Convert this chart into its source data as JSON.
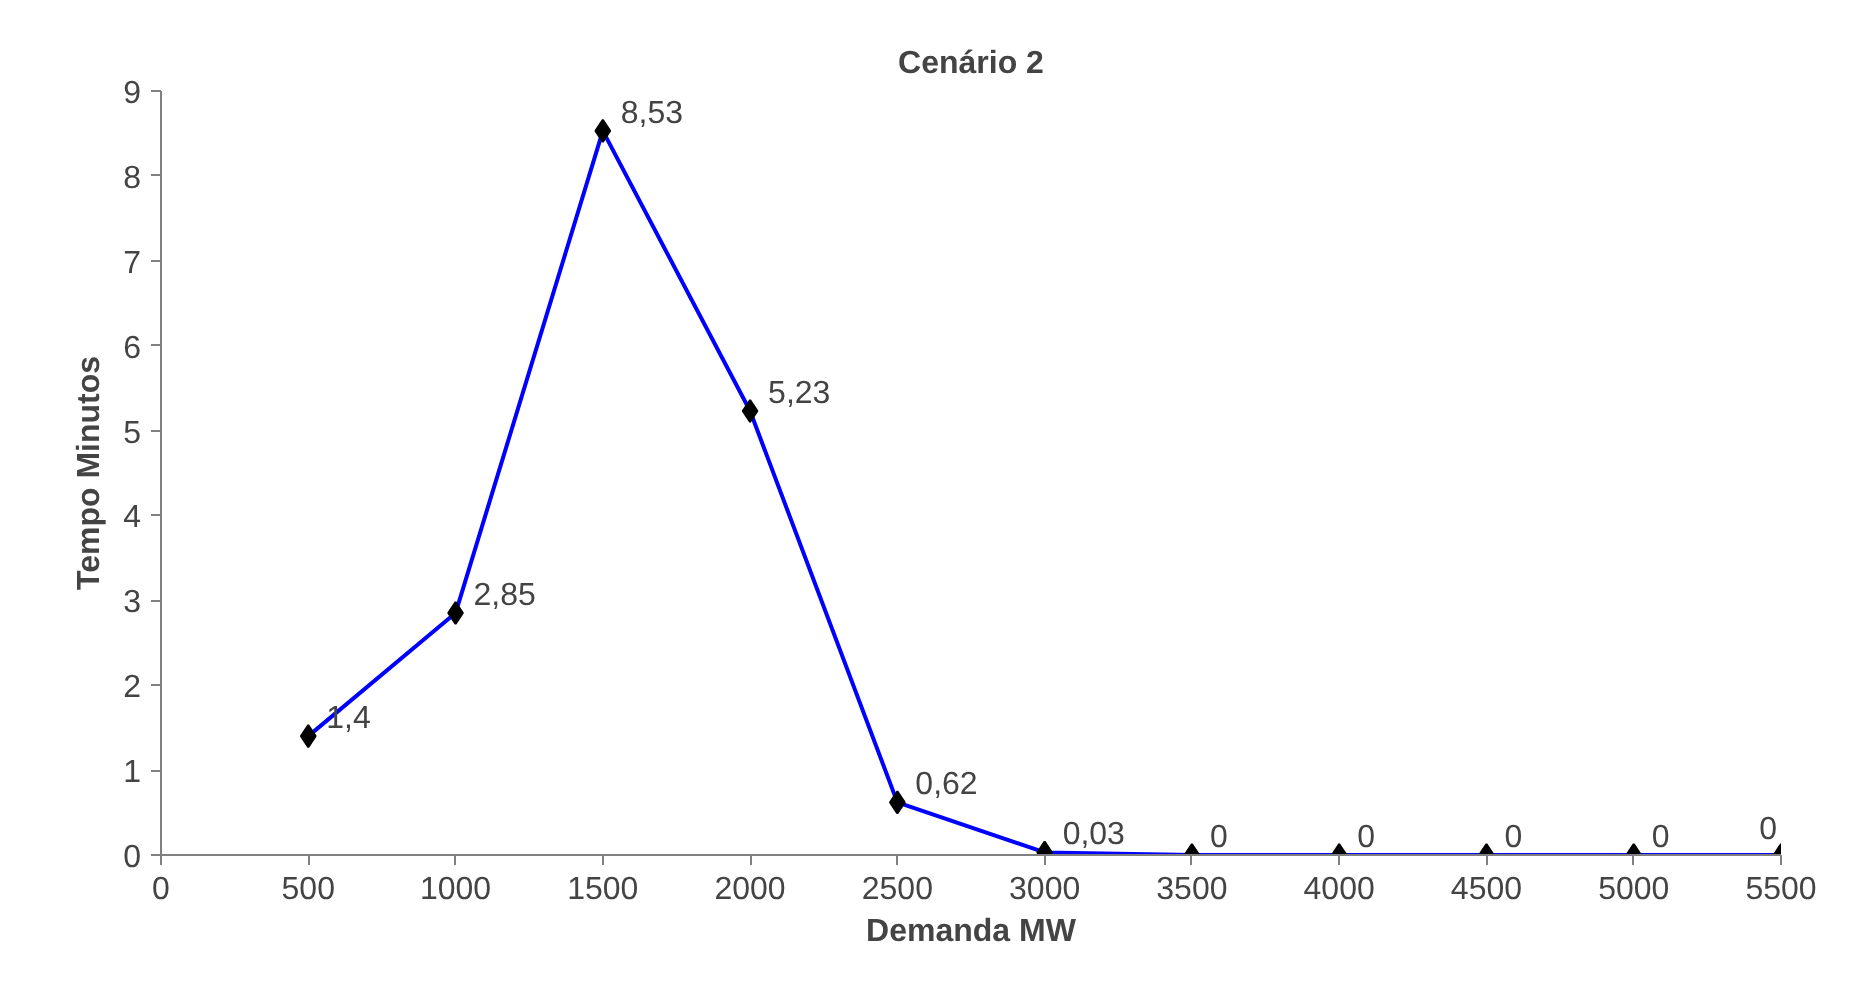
{
  "chart_data": {
    "type": "line",
    "title": "Cenário 2",
    "xlabel": "Demanda MW",
    "ylabel": "Tempo Minutos",
    "x": [
      500,
      1000,
      1500,
      2000,
      2500,
      3000,
      3500,
      4000,
      4500,
      5000,
      5500
    ],
    "series": [
      {
        "color": "#0000ff",
        "values": [
          1.4,
          2.85,
          8.53,
          5.23,
          0.62,
          0.03,
          0,
          0,
          0,
          0,
          0
        ],
        "value_labels": [
          "1,4",
          "2,85",
          "8,53",
          "5,23",
          "0,62",
          "0,03",
          "0",
          "0",
          "0",
          "0",
          "0"
        ]
      }
    ],
    "marker": "diamond",
    "line_style": "solid",
    "xlim": [
      0,
      5500
    ],
    "xticks": [
      0,
      500,
      1000,
      1500,
      2000,
      2500,
      3000,
      3500,
      4000,
      4500,
      5000,
      5500
    ],
    "ylim": [
      0,
      9
    ],
    "yticks": [
      0,
      1,
      2,
      3,
      4,
      5,
      6,
      7,
      8,
      9
    ],
    "grid": false,
    "legend": false
  }
}
